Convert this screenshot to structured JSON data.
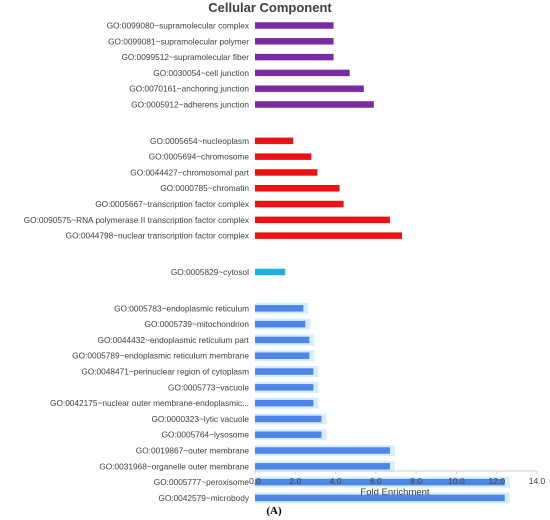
{
  "figure_label": "(A)",
  "chart_data": {
    "type": "bar",
    "orientation": "horizontal",
    "title": "Cellular Component",
    "xlabel": "Fold Enrichment",
    "ylabel": "",
    "xlim": [
      0,
      14
    ],
    "x_ticks": [
      "0.0",
      "2.0",
      "4.0",
      "6.0",
      "8.0",
      "10.0",
      "12.0",
      "14.0"
    ],
    "grid": false,
    "legend": "none",
    "groups": [
      {
        "color": "#7b2aa6",
        "categories": [
          "GO:0099080~supramolecular complex",
          "GO:0099081~supramolecular polymer",
          "GO:0099512~supramolecular fiber",
          "GO:0030054~cell junction",
          "GO:0070161~anchoring junction",
          "GO:0005912~adherens junction"
        ],
        "values": [
          3.9,
          3.9,
          3.9,
          4.7,
          5.4,
          5.9
        ]
      },
      {
        "color": "#ee1111",
        "categories": [
          "GO:0005654~nucleoplasm",
          "GO:0005694~chromosome",
          "GO:0044427~chromosomal part",
          "GO:0000785~chromatin",
          "GO:0005667~transcription factor complex",
          "GO:0090575~RNA polymerase II transcription factor complex",
          "GO:0044798~nuclear transcription factor complex"
        ],
        "values": [
          1.9,
          2.8,
          3.1,
          4.2,
          4.4,
          6.7,
          7.3
        ]
      },
      {
        "color": "#1fb0e0",
        "categories": [
          "GO:0005829~cytosol"
        ],
        "values": [
          1.5
        ]
      },
      {
        "color": "#4e86e8",
        "shade": "#d4effb",
        "categories": [
          "GO:0005783~endoplasmic reticulum",
          "GO:0005739~mitochondrion",
          "GO:0044432~endoplasmic reticulum part",
          "GO:0005789~endoplasmic reticulum membrane",
          "GO:0048471~perinuclear region of cytoplasm",
          "GO:0005773~vacuole",
          "GO:0042175~nuclear outer membrane-endoplasmic...",
          "GO:0000323~lytic vacuole",
          "GO:0005764~lysosome",
          "GO:0019867~outer membrane",
          "GO:0031968~organelle outer membrane",
          "GO:0005777~peroxisome",
          "GO:0042579~microbody"
        ],
        "values": [
          2.4,
          2.5,
          2.7,
          2.7,
          2.9,
          2.9,
          2.9,
          3.3,
          3.3,
          6.7,
          6.7,
          12.4,
          12.4
        ]
      }
    ]
  }
}
